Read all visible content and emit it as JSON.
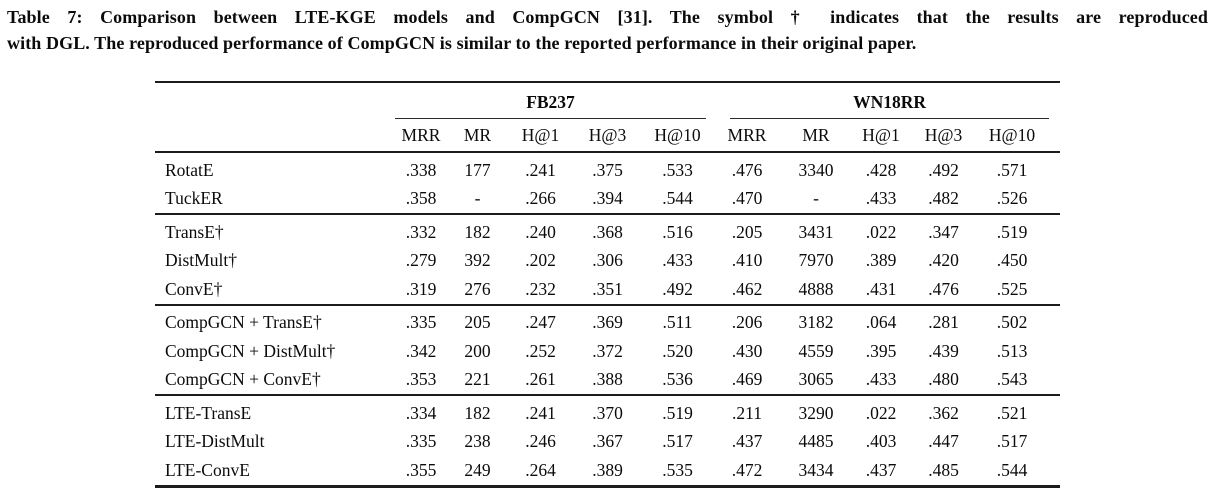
{
  "page": {
    "background": "#ffffff",
    "text_color": "#0b0b0b",
    "rule_color": "#1c1c1c"
  },
  "caption": {
    "lines": [
      "Table 7: Comparison between LTE-KGE models and CompGCN [31]. The symbol † indicates that the results are reproduced",
      "with DGL. The reproduced performance of CompGCN is similar to the reported performance in their original paper."
    ]
  },
  "chart_data": {
    "type": "table",
    "title": "Table 7: Comparison between LTE-KGE models and CompGCN",
    "column_groups": [
      {
        "label": "FB237",
        "span": 5
      },
      {
        "label": "WN18RR",
        "span": 5
      }
    ],
    "metric_columns": [
      "MRR",
      "MR",
      "H@1",
      "H@3",
      "H@10"
    ],
    "row_groups": [
      [
        [
          "RotatE",
          ".338",
          "177",
          ".241",
          ".375",
          ".533",
          ".476",
          "3340",
          ".428",
          ".492",
          ".571"
        ],
        [
          "TuckER",
          ".358",
          "-",
          ".266",
          ".394",
          ".544",
          ".470",
          "-",
          ".433",
          ".482",
          ".526"
        ]
      ],
      [
        [
          "TransE†",
          ".332",
          "182",
          ".240",
          ".368",
          ".516",
          ".205",
          "3431",
          ".022",
          ".347",
          ".519"
        ],
        [
          "DistMult†",
          ".279",
          "392",
          ".202",
          ".306",
          ".433",
          ".410",
          "7970",
          ".389",
          ".420",
          ".450"
        ],
        [
          "ConvE†",
          ".319",
          "276",
          ".232",
          ".351",
          ".492",
          ".462",
          "4888",
          ".431",
          ".476",
          ".525"
        ]
      ],
      [
        [
          "CompGCN + TransE†",
          ".335",
          "205",
          ".247",
          ".369",
          ".511",
          ".206",
          "3182",
          ".064",
          ".281",
          ".502"
        ],
        [
          "CompGCN + DistMult†",
          ".342",
          "200",
          ".252",
          ".372",
          ".520",
          ".430",
          "4559",
          ".395",
          ".439",
          ".513"
        ],
        [
          "CompGCN + ConvE†",
          ".353",
          "221",
          ".261",
          ".388",
          ".536",
          ".469",
          "3065",
          ".433",
          ".480",
          ".543"
        ]
      ],
      [
        [
          "LTE-TransE",
          ".334",
          "182",
          ".241",
          ".370",
          ".519",
          ".211",
          "3290",
          ".022",
          ".362",
          ".521"
        ],
        [
          "LTE-DistMult",
          ".335",
          "238",
          ".246",
          ".367",
          ".517",
          ".437",
          "4485",
          ".403",
          ".447",
          ".517"
        ],
        [
          "LTE-ConvE",
          ".355",
          "249",
          ".264",
          ".389",
          ".535",
          ".472",
          "3434",
          ".437",
          ".485",
          ".544"
        ]
      ]
    ]
  }
}
